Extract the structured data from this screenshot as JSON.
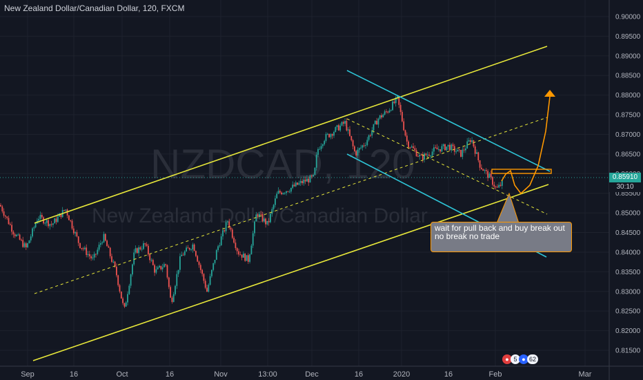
{
  "header": {
    "symbol_line": "New Zealand Dollar/Canadian Dollar, 120, FXCM"
  },
  "watermark": {
    "ticker": "NZDCAD, 120",
    "name": "New Zealand Dollar/Canadian Dollar"
  },
  "annotation": {
    "lines": [
      "wait for pull back and buy break out",
      "no break no trade"
    ]
  },
  "last_price": {
    "value": "0.85910",
    "countdown": "30:10"
  },
  "event_badges": [
    "5",
    "6",
    "2"
  ],
  "colors": {
    "background": "#131722",
    "channel": "#e8e83a",
    "channel_down": "#2ec4d6",
    "up_candle": "#26a69a",
    "down_candle": "#ef5350",
    "projection": "#ff9800",
    "price_line": "#26a69a"
  },
  "chart_data": {
    "type": "candlestick",
    "symbol": "NZDCAD",
    "timeframe": "120",
    "y_axis": {
      "ticks": [
        "0.90000",
        "0.89500",
        "0.89000",
        "0.88500",
        "0.88000",
        "0.87500",
        "0.87000",
        "0.86500",
        "0.86000",
        "0.85500",
        "0.85000",
        "0.84500",
        "0.84000",
        "0.83500",
        "0.83000",
        "0.82500",
        "0.82000",
        "0.81500"
      ],
      "range": [
        0.812,
        0.9025
      ]
    },
    "x_axis": {
      "ticks": [
        "Sep",
        "16",
        "Oct",
        "16",
        "Nov",
        "13:00",
        "Dec",
        "16",
        "2020",
        "16",
        "Feb",
        "Mar"
      ]
    },
    "price_path": [
      [
        0,
        0.852
      ],
      [
        20,
        0.845
      ],
      [
        38,
        0.841
      ],
      [
        55,
        0.849
      ],
      [
        75,
        0.847
      ],
      [
        95,
        0.851
      ],
      [
        115,
        0.842
      ],
      [
        135,
        0.838
      ],
      [
        150,
        0.844
      ],
      [
        168,
        0.835
      ],
      [
        180,
        0.825
      ],
      [
        195,
        0.84
      ],
      [
        210,
        0.842
      ],
      [
        225,
        0.835
      ],
      [
        240,
        0.837
      ],
      [
        248,
        0.827
      ],
      [
        262,
        0.839
      ],
      [
        280,
        0.842
      ],
      [
        300,
        0.83
      ],
      [
        315,
        0.841
      ],
      [
        330,
        0.848
      ],
      [
        345,
        0.84
      ],
      [
        360,
        0.838
      ],
      [
        372,
        0.85
      ],
      [
        388,
        0.847
      ],
      [
        402,
        0.855
      ],
      [
        418,
        0.856
      ],
      [
        440,
        0.858
      ],
      [
        455,
        0.859
      ],
      [
        460,
        0.866
      ],
      [
        470,
        0.869
      ],
      [
        485,
        0.871
      ],
      [
        500,
        0.873
      ],
      [
        515,
        0.865
      ],
      [
        530,
        0.868
      ],
      [
        548,
        0.874
      ],
      [
        562,
        0.876
      ],
      [
        576,
        0.879
      ],
      [
        590,
        0.868
      ],
      [
        610,
        0.864
      ],
      [
        630,
        0.866
      ],
      [
        650,
        0.867
      ],
      [
        668,
        0.865
      ],
      [
        683,
        0.869
      ],
      [
        696,
        0.862
      ],
      [
        710,
        0.859
      ],
      [
        720,
        0.856
      ],
      [
        730,
        0.858
      ]
    ],
    "trendlines": [
      {
        "name": "upper-channel",
        "color": "#e8e83a",
        "style": "solid"
      },
      {
        "name": "lower-channel",
        "color": "#e8e83a",
        "style": "solid"
      },
      {
        "name": "mid-channel",
        "color": "#e8e83a",
        "style": "dashed"
      },
      {
        "name": "down-channel-upper",
        "color": "#2ec4d6",
        "style": "solid"
      },
      {
        "name": "down-channel-lower",
        "color": "#2ec4d6",
        "style": "solid"
      },
      {
        "name": "down-channel-mid",
        "color": "#e8e83a",
        "style": "dashed"
      }
    ],
    "resistance_level": 0.86,
    "projection": "pullback then breakout up"
  }
}
